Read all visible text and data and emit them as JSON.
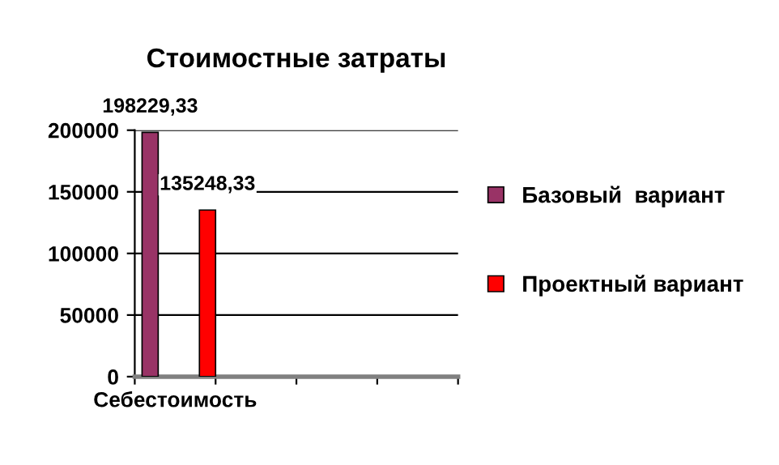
{
  "chart_data": {
    "type": "bar",
    "title": "Стоимостные затраты",
    "categories": [
      "Себестоимость",
      null,
      null,
      null
    ],
    "series": [
      {
        "name": "Базовый  вариант",
        "color": "#993366",
        "values": [
          198229.33,
          null,
          null,
          null
        ],
        "value_labels": [
          "198229,33",
          null,
          null,
          null
        ]
      },
      {
        "name": "Проектный вариант",
        "color": "#ff0000",
        "values": [
          135248.33,
          null,
          null,
          null
        ],
        "value_labels": [
          "135248,33",
          null,
          null,
          null
        ]
      }
    ],
    "ylim": [
      0,
      200000
    ],
    "yticks": [
      0,
      50000,
      100000,
      150000,
      200000
    ],
    "grid": "y",
    "legend": "right"
  }
}
